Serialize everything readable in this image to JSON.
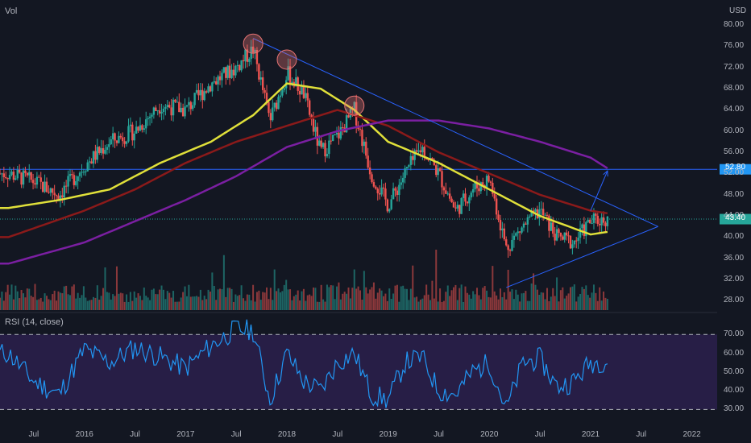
{
  "header": {
    "volume_label": "Vol",
    "currency": "USD"
  },
  "rsi_panel": {
    "label": "RSI (14, close)"
  },
  "colors": {
    "bg": "#131722",
    "up": "#26a69a",
    "down": "#ef5350",
    "ma_fast": "#e0e03a",
    "ma_mid": "#8b1a1a",
    "ma_slow": "#7b1fa2",
    "trend": "#2962ff",
    "rsi_line": "#2196f3",
    "rsi_band": "#2a1f4a",
    "marker_circle": "#e57373",
    "price_tag": "#2196f3"
  },
  "price_tags": {
    "level": "52.80",
    "current": "43.40"
  },
  "chart_data": [
    {
      "type": "candlestick",
      "title": "",
      "ylim": [
        27,
        82
      ],
      "yticks": [
        "80.00",
        "76.00",
        "72.00",
        "68.00",
        "64.00",
        "60.00",
        "56.00",
        "52.00",
        "48.00",
        "44.00",
        "40.00",
        "36.00",
        "32.00",
        "28.00"
      ],
      "xticks": [
        "Jul",
        "2016",
        "Jul",
        "2017",
        "Jul",
        "2018",
        "Jul",
        "2019",
        "Jul",
        "2020",
        "Jul",
        "2021",
        "Jul",
        "2022"
      ],
      "horizontal_level": 52.8,
      "current_price": 43.4,
      "price_path": [
        [
          "2015-04",
          52.0
        ],
        [
          "2015-07",
          50.5
        ],
        [
          "2015-10",
          48.0
        ],
        [
          "2016-01",
          53.5
        ],
        [
          "2016-04",
          58.0
        ],
        [
          "2016-07",
          60.0
        ],
        [
          "2016-10",
          65.0
        ],
        [
          "2017-01",
          64.0
        ],
        [
          "2017-04",
          69.0
        ],
        [
          "2017-07",
          72.0
        ],
        [
          "2017-09",
          75.5
        ],
        [
          "2017-11",
          62.0
        ],
        [
          "2018-01",
          71.0
        ],
        [
          "2018-03",
          67.0
        ],
        [
          "2018-05",
          56.0
        ],
        [
          "2018-07",
          59.0
        ],
        [
          "2018-09",
          64.0
        ],
        [
          "2018-11",
          52.0
        ],
        [
          "2019-01",
          46.0
        ],
        [
          "2019-03",
          52.0
        ],
        [
          "2019-05",
          57.0
        ],
        [
          "2019-07",
          52.0
        ],
        [
          "2019-09",
          45.0
        ],
        [
          "2019-11",
          49.0
        ],
        [
          "2020-01",
          51.0
        ],
        [
          "2020-03",
          38.0
        ],
        [
          "2020-05",
          42.0
        ],
        [
          "2020-07",
          45.0
        ],
        [
          "2020-09",
          40.0
        ],
        [
          "2020-11",
          39.0
        ],
        [
          "2021-01",
          43.0
        ],
        [
          "2021-03",
          43.4
        ]
      ],
      "moving_averages": [
        {
          "name": "ma_fast",
          "values": [
            [
              "2015-04",
              45.5
            ],
            [
              "2015-10",
              47.0
            ],
            [
              "2016-04",
              49.0
            ],
            [
              "2016-10",
              54.0
            ],
            [
              "2017-04",
              58.0
            ],
            [
              "2017-09",
              63.0
            ],
            [
              "2018-01",
              69.0
            ],
            [
              "2018-05",
              68.0
            ],
            [
              "2018-09",
              64.0
            ],
            [
              "2019-01",
              58.0
            ],
            [
              "2019-07",
              54.0
            ],
            [
              "2020-01",
              49.0
            ],
            [
              "2020-07",
              44.0
            ],
            [
              "2021-01",
              40.5
            ],
            [
              "2021-03",
              41.0
            ]
          ]
        },
        {
          "name": "ma_mid",
          "values": [
            [
              "2015-04",
              40.0
            ],
            [
              "2016-01",
              45.0
            ],
            [
              "2016-07",
              49.0
            ],
            [
              "2017-01",
              54.0
            ],
            [
              "2017-07",
              58.0
            ],
            [
              "2018-01",
              61.0
            ],
            [
              "2018-07",
              64.0
            ],
            [
              "2019-01",
              61.0
            ],
            [
              "2019-07",
              56.0
            ],
            [
              "2020-01",
              52.0
            ],
            [
              "2020-07",
              48.0
            ],
            [
              "2021-01",
              45.0
            ],
            [
              "2021-03",
              44.5
            ]
          ]
        },
        {
          "name": "ma_slow",
          "values": [
            [
              "2015-04",
              35.0
            ],
            [
              "2016-01",
              39.0
            ],
            [
              "2016-07",
              43.0
            ],
            [
              "2017-01",
              47.0
            ],
            [
              "2017-07",
              51.5
            ],
            [
              "2018-01",
              57.0
            ],
            [
              "2018-07",
              60.0
            ],
            [
              "2019-01",
              62.0
            ],
            [
              "2019-07",
              62.0
            ],
            [
              "2020-01",
              60.5
            ],
            [
              "2020-07",
              58.0
            ],
            [
              "2021-01",
              55.0
            ],
            [
              "2021-03",
              53.0
            ]
          ]
        }
      ],
      "trendlines": [
        {
          "from": [
            "2017-09",
            77.5
          ],
          "to": [
            "2021-09",
            42.0
          ]
        },
        {
          "from": [
            "2020-03",
            30.5
          ],
          "to": [
            "2021-09",
            42.0
          ]
        },
        {
          "from": [
            "2021-01",
            45.0
          ],
          "to": [
            "2021-03",
            52.5
          ],
          "arrow": true
        }
      ],
      "peak_markers": [
        [
          "2017-09",
          76.5
        ],
        [
          "2018-01",
          73.5
        ],
        [
          "2018-09",
          64.8
        ]
      ]
    },
    {
      "type": "line",
      "title": "RSI (14, close)",
      "ylim": [
        25,
        80
      ],
      "yticks": [
        "70.00",
        "60.00",
        "50.00",
        "40.00",
        "30.00"
      ],
      "band": [
        30,
        70
      ],
      "values": [
        [
          "2015-04",
          60
        ],
        [
          "2015-07",
          45
        ],
        [
          "2015-10",
          38
        ],
        [
          "2016-01",
          62
        ],
        [
          "2016-04",
          55
        ],
        [
          "2016-07",
          63
        ],
        [
          "2016-10",
          58
        ],
        [
          "2017-01",
          52
        ],
        [
          "2017-04",
          64
        ],
        [
          "2017-07",
          73
        ],
        [
          "2017-09",
          72
        ],
        [
          "2017-11",
          35
        ],
        [
          "2018-01",
          60
        ],
        [
          "2018-03",
          45
        ],
        [
          "2018-05",
          40
        ],
        [
          "2018-07",
          55
        ],
        [
          "2018-09",
          60
        ],
        [
          "2018-11",
          38
        ],
        [
          "2019-01",
          35
        ],
        [
          "2019-03",
          55
        ],
        [
          "2019-05",
          58
        ],
        [
          "2019-07",
          40
        ],
        [
          "2019-09",
          38
        ],
        [
          "2019-11",
          50
        ],
        [
          "2020-01",
          55
        ],
        [
          "2020-03",
          30
        ],
        [
          "2020-05",
          55
        ],
        [
          "2020-07",
          57
        ],
        [
          "2020-09",
          42
        ],
        [
          "2020-11",
          45
        ],
        [
          "2021-01",
          55
        ],
        [
          "2021-03",
          56
        ]
      ]
    }
  ]
}
